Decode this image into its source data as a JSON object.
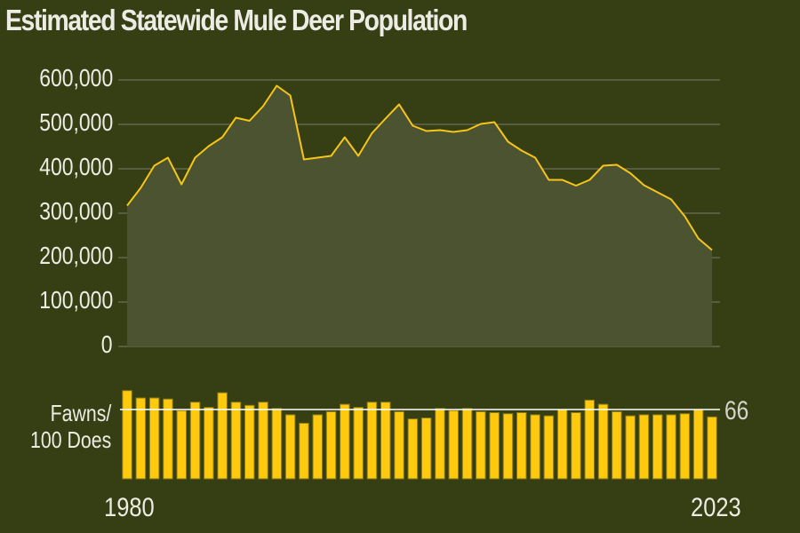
{
  "title": "Estimated Statewide Mule Deer Population",
  "colors": {
    "background": "#363e13",
    "line": "#f6c518",
    "area_fill": "#4b5330",
    "bar": "#ffc90e",
    "bar_border": "#8a7a1a",
    "grid": "#7a7a70",
    "reference_line": "#ffffff",
    "text": "#ecece4"
  },
  "y_axis": {
    "ticks": [
      "600,000",
      "500,000",
      "400,000",
      "300,000",
      "200,000",
      "100,000",
      "0"
    ]
  },
  "fawn_panel": {
    "label_line1": "Fawns/",
    "label_line2": "100 Does",
    "reference_value": "66"
  },
  "x_axis": {
    "start_label": "1980",
    "end_label": "2023"
  },
  "chart_data": [
    {
      "type": "area",
      "title": "Estimated Statewide Mule Deer Population",
      "xlabel": "",
      "ylabel": "",
      "ylim": [
        0,
        600000
      ],
      "grid": true,
      "x": [
        1980,
        1981,
        1982,
        1983,
        1984,
        1985,
        1986,
        1987,
        1988,
        1989,
        1990,
        1991,
        1992,
        1993,
        1994,
        1995,
        1996,
        1997,
        1998,
        1999,
        2000,
        2001,
        2002,
        2003,
        2004,
        2005,
        2006,
        2007,
        2008,
        2009,
        2010,
        2011,
        2012,
        2013,
        2014,
        2015,
        2016,
        2017,
        2018,
        2019,
        2020,
        2021,
        2022,
        2023
      ],
      "series": [
        {
          "name": "Estimated population",
          "values": [
            317000,
            357000,
            407000,
            425000,
            365000,
            425000,
            451000,
            471000,
            515000,
            508000,
            541000,
            587000,
            565000,
            421000,
            425000,
            429000,
            471000,
            429000,
            480000,
            513000,
            545000,
            497000,
            485000,
            487000,
            483000,
            487000,
            501000,
            505000,
            461000,
            441000,
            425000,
            375000,
            375000,
            362000,
            375000,
            407000,
            409000,
            390000,
            363000,
            347000,
            331000,
            293000,
            243000,
            217000
          ]
        }
      ],
      "y_tick_labels": [
        "0",
        "100,000",
        "200,000",
        "300,000",
        "400,000",
        "500,000",
        "600,000"
      ],
      "x_tick_labels": [
        "1980",
        "2023"
      ]
    },
    {
      "type": "bar",
      "title": "Fawns/100 Does",
      "xlabel": "",
      "ylabel": "Fawns/ 100 Does",
      "grid": false,
      "reference_line": {
        "value": 66,
        "label": "66"
      },
      "categories": [
        1980,
        1981,
        1982,
        1983,
        1984,
        1985,
        1986,
        1987,
        1988,
        1989,
        1990,
        1991,
        1992,
        1993,
        1994,
        1995,
        1996,
        1997,
        1998,
        1999,
        2000,
        2001,
        2002,
        2003,
        2004,
        2005,
        2006,
        2007,
        2008,
        2009,
        2010,
        2011,
        2012,
        2013,
        2014,
        2015,
        2016,
        2017,
        2018,
        2019,
        2020,
        2021,
        2022,
        2023
      ],
      "values": [
        84,
        77,
        77,
        76,
        65,
        73,
        68,
        82,
        73,
        70,
        73,
        67,
        61,
        53,
        61,
        64,
        71,
        68,
        73,
        73,
        64,
        57,
        58,
        67,
        65,
        67,
        64,
        63,
        62,
        63,
        61,
        60,
        66,
        63,
        75,
        71,
        64,
        60,
        61,
        61,
        61,
        62,
        66,
        59
      ]
    }
  ]
}
